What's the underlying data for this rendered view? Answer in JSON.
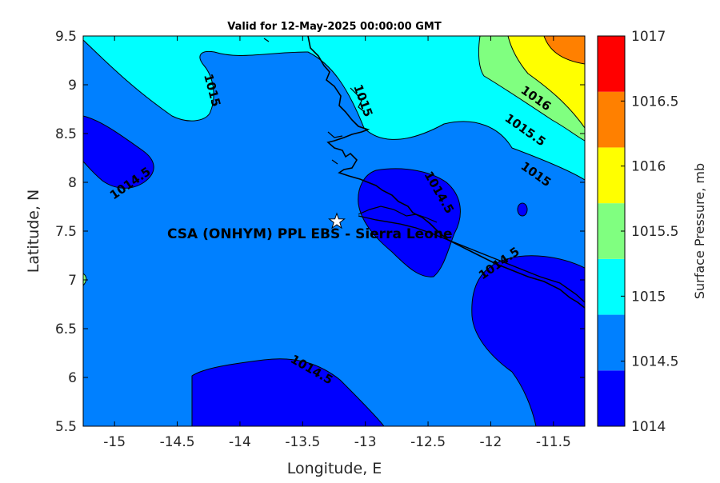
{
  "title": "Valid for 12-May-2025 00:00:00 GMT",
  "x_axis": {
    "label": "Longitude, E",
    "range": [
      -15.25,
      -11.25
    ],
    "ticks": [
      "-15",
      "-14.5",
      "-14",
      "-13.5",
      "-13",
      "-12.5",
      "-12",
      "-11.5"
    ]
  },
  "y_axis": {
    "label": "Latitude, N",
    "range": [
      5.5,
      9.5
    ],
    "ticks": [
      "5.5",
      "6",
      "6.5",
      "7",
      "7.5",
      "8",
      "8.5",
      "9",
      "9.5"
    ]
  },
  "colorbar": {
    "label": "Surface Pressure, mb",
    "levels": [
      "1014",
      "1014.5",
      "1015",
      "1015.5",
      "1016",
      "1016.5",
      "1017"
    ],
    "colors": [
      "#0000ff",
      "#0080ff",
      "#00ffff",
      "#80ff80",
      "#ffff00",
      "#ff8000",
      "#ff0000"
    ]
  },
  "contour_labels": [
    "1015",
    "1015",
    "1014.5",
    "1016",
    "1015.5",
    "1015",
    "1014.5",
    "1014.5",
    "1014.5"
  ],
  "site": {
    "name": "CSA (ONHYM) PPL EBS - Sierra Leone",
    "lon": -13.23,
    "lat": 7.6,
    "marker": "star-icon"
  }
}
